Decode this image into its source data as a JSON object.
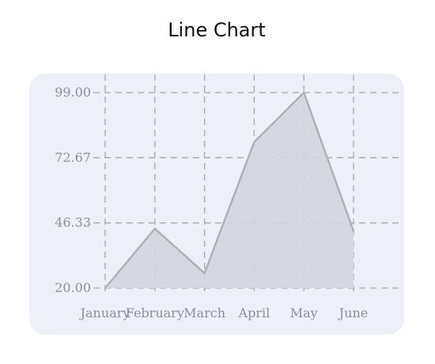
{
  "chart_data": {
    "type": "area",
    "title": "Line Chart",
    "categories": [
      "January",
      "February",
      "March",
      "April",
      "May",
      "June"
    ],
    "values": [
      20,
      44,
      26,
      79,
      99,
      43
    ],
    "y_ticks": [
      "20.00",
      "46.33",
      "72.67",
      "99.00"
    ],
    "ylim": [
      20,
      99
    ],
    "grid": true,
    "colors": {
      "line": "#b0b1b8",
      "fill": "#d3d5de",
      "grid": "#a7a9b0",
      "card": "#eef0f9"
    }
  }
}
